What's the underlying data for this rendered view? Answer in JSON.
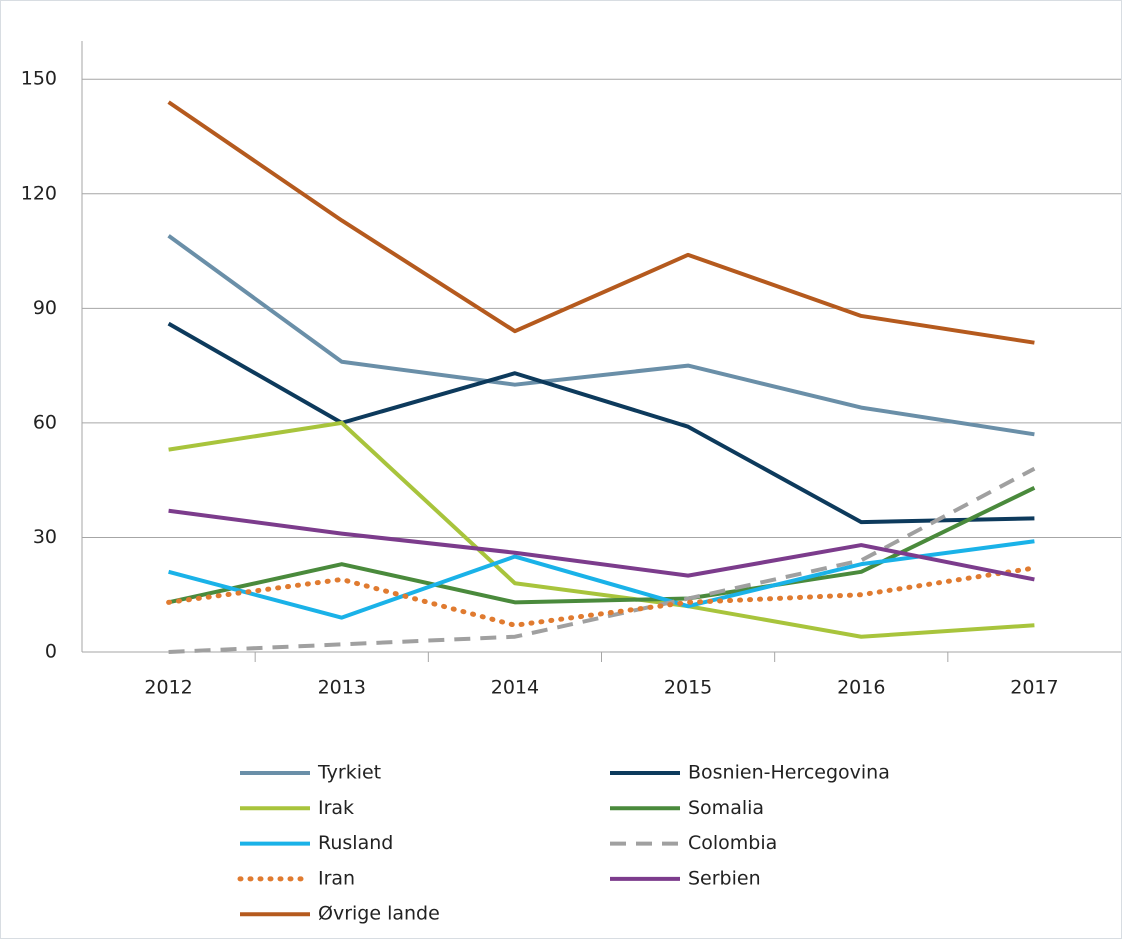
{
  "chart_data": {
    "type": "line",
    "categories": [
      "2012",
      "2013",
      "2014",
      "2015",
      "2016",
      "2017"
    ],
    "ylim": [
      0,
      160
    ],
    "yticks": [
      0,
      30,
      60,
      90,
      120,
      150
    ],
    "grid": true,
    "series": [
      {
        "name": "Tyrkiet",
        "color": "#6a8fa8",
        "dash": "solid",
        "values": [
          109,
          76,
          70,
          75,
          64,
          57
        ]
      },
      {
        "name": "Bosnien-Hercegovina",
        "color": "#0d3a5c",
        "dash": "solid",
        "values": [
          86,
          60,
          73,
          59,
          34,
          35
        ]
      },
      {
        "name": "Irak",
        "color": "#a8c43c",
        "dash": "solid",
        "values": [
          53,
          60,
          18,
          12,
          4,
          7
        ]
      },
      {
        "name": "Somalia",
        "color": "#4a8a3c",
        "dash": "solid",
        "values": [
          13,
          23,
          13,
          14,
          21,
          43
        ]
      },
      {
        "name": "Rusland",
        "color": "#1ab2e8",
        "dash": "solid",
        "values": [
          21,
          9,
          25,
          12,
          23,
          29
        ]
      },
      {
        "name": "Colombia",
        "color": "#a0a0a0",
        "dash": "dashed",
        "values": [
          0,
          2,
          4,
          14,
          24,
          48
        ]
      },
      {
        "name": "Iran",
        "color": "#e07b30",
        "dash": "dotted",
        "values": [
          13,
          19,
          7,
          13,
          15,
          22
        ]
      },
      {
        "name": "Serbien",
        "color": "#7c3c8c",
        "dash": "solid",
        "values": [
          37,
          31,
          26,
          20,
          28,
          19
        ]
      },
      {
        "name": "Øvrige lande",
        "color": "#b55a1e",
        "dash": "solid",
        "values": [
          144,
          113,
          84,
          104,
          88,
          81
        ]
      }
    ]
  }
}
